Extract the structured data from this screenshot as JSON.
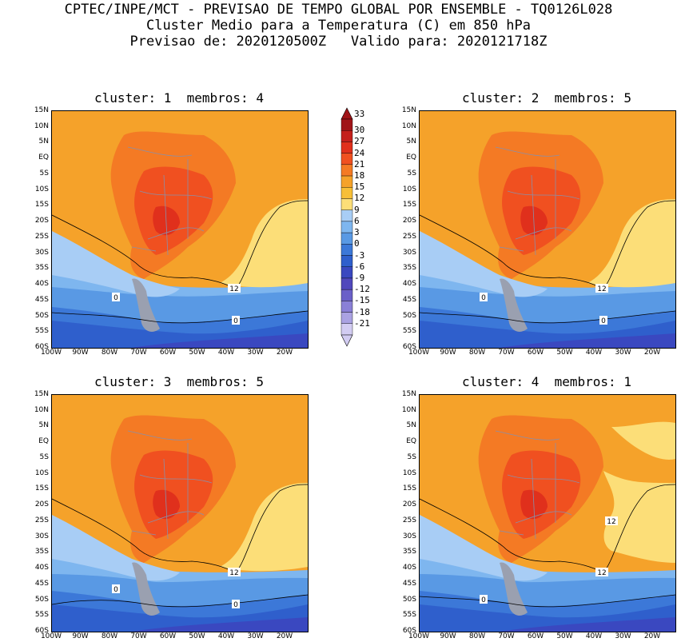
{
  "header": {
    "line1": "CPTEC/INPE/MCT - PREVISAO DE TEMPO GLOBAL POR ENSEMBLE - TQ0126L028",
    "line2": "Cluster Medio para a Temperatura (C) em 850 hPa",
    "line3": "Previsao de: 2020120500Z   Valido para: 2020121718Z"
  },
  "panels": [
    {
      "title": "cluster: 1  membros: 4",
      "labels": {
        "a": "12",
        "b": "0",
        "c": "0"
      }
    },
    {
      "title": "cluster: 2  membros: 5",
      "labels": {
        "a": "12",
        "b": "0",
        "c": "0"
      }
    },
    {
      "title": "cluster: 3  membros: 5",
      "labels": {
        "a": "12",
        "b": "0",
        "c": "0"
      }
    },
    {
      "title": "cluster: 4  membros: 1",
      "labels": {
        "a": "12",
        "b": "12",
        "c": "0"
      }
    }
  ],
  "axes": {
    "lat": [
      "15N",
      "10N",
      "5N",
      "EQ",
      "5S",
      "10S",
      "15S",
      "20S",
      "25S",
      "30S",
      "35S",
      "40S",
      "45S",
      "50S",
      "55S",
      "60S"
    ],
    "lon": [
      "100W",
      "90W",
      "80W",
      "70W",
      "60W",
      "50W",
      "40W",
      "30W",
      "20W"
    ]
  },
  "colorbar": {
    "levels": [
      "33",
      "30",
      "27",
      "24",
      "21",
      "18",
      "15",
      "12",
      "9",
      "6",
      "3",
      "0",
      "-3",
      "-6",
      "-9",
      "-12",
      "-15",
      "-18",
      "-21"
    ],
    "colors": [
      "#a01418",
      "#c4201c",
      "#e0301c",
      "#f05020",
      "#f47a24",
      "#f5a22a",
      "#f7bf38",
      "#fcde78",
      "#a8cdf5",
      "#7eb6ef",
      "#5999e4",
      "#3c78d8",
      "#2f5fcc",
      "#3a48c0",
      "#5048bc",
      "#6a60c8",
      "#8a80d6",
      "#aaa2e2",
      "#d2ccf2"
    ]
  }
}
